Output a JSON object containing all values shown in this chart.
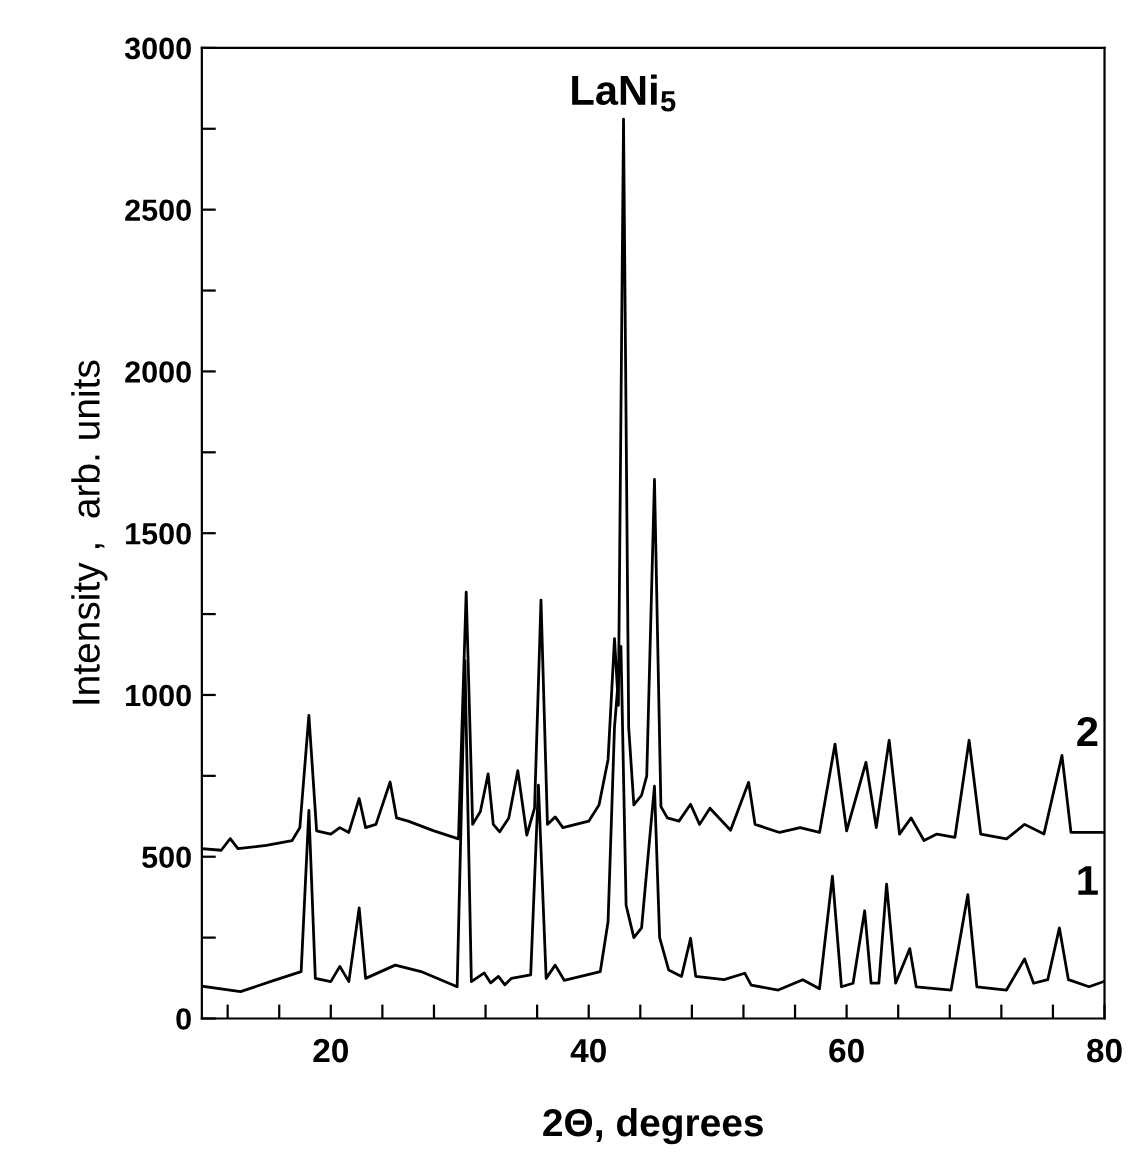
{
  "chart_data": {
    "type": "line",
    "xlabel": "2Θ, degrees",
    "ylabel": "Intensity ,  arb. units",
    "xlim": [
      10,
      80
    ],
    "ylim": [
      0,
      3000
    ],
    "xticks": [
      {
        "value": 12,
        "label": null
      },
      {
        "value": 16,
        "label": null
      },
      20,
      {
        "value": 24,
        "label": null
      },
      {
        "value": 28,
        "label": null
      },
      {
        "value": 32,
        "label": null
      },
      {
        "value": 36,
        "label": null
      },
      40,
      {
        "value": 44,
        "label": null
      },
      {
        "value": 48,
        "label": null
      },
      {
        "value": 52,
        "label": null
      },
      {
        "value": 56,
        "label": null
      },
      60,
      {
        "value": 64,
        "label": null
      },
      {
        "value": 68,
        "label": null
      },
      {
        "value": 72,
        "label": null
      },
      {
        "value": 76,
        "label": null
      },
      80
    ],
    "yticks": [
      0,
      {
        "value": 250,
        "label": null
      },
      500,
      {
        "value": 750,
        "label": null
      },
      1000,
      {
        "value": 1250,
        "label": null
      },
      1500,
      {
        "value": 1750,
        "label": null
      },
      2000,
      {
        "value": 2250,
        "label": null
      },
      2500,
      {
        "value": 2750,
        "label": null
      },
      3000
    ],
    "grid": false,
    "legend": false,
    "marker": "none",
    "line_style": "solid",
    "annotations": [
      {
        "text": "LaNi$_{5}$",
        "x": 42.7,
        "y": 2780
      }
    ],
    "series": [
      {
        "name": "2",
        "color": "#000000",
        "x": [
          10,
          11.5,
          12.2,
          12.8,
          15,
          17.0,
          17.6,
          18.3,
          18.9,
          20.0,
          20.7,
          21.4,
          22.2,
          22.7,
          23.5,
          24.6,
          25.1,
          26,
          28,
          29.9,
          30.5,
          31.0,
          31.6,
          32.2,
          32.6,
          33.1,
          33.8,
          34.5,
          35.2,
          35.8,
          36.3,
          36.8,
          37.4,
          38.0,
          39.0,
          40.0,
          40.8,
          41.5,
          42.0,
          42.3,
          42.7,
          43.1,
          43.5,
          44.1,
          44.5,
          45.1,
          45.6,
          46.1,
          47.0,
          47.9,
          48.6,
          49.4,
          51.0,
          52.4,
          52.9,
          54.8,
          56.4,
          57.9,
          59.1,
          60.0,
          61.5,
          62.3,
          63.3,
          64.1,
          65.0,
          66.0,
          67.0,
          68.4,
          69.5,
          70.4,
          72.4,
          73.8,
          75.3,
          76.7,
          77.4,
          80
        ],
        "values": [
          525,
          520,
          556,
          525,
          535,
          550,
          590,
          937,
          580,
          570,
          590,
          575,
          680,
          590,
          600,
          731,
          620,
          610,
          580,
          555,
          1318,
          600,
          640,
          756,
          600,
          577,
          620,
          766,
          567,
          650,
          1293,
          600,
          623,
          590,
          600,
          610,
          660,
          800,
          1174,
          968,
          2780,
          900,
          660,
          690,
          750,
          1666,
          655,
          620,
          610,
          662,
          600,
          650,
          582,
          730,
          600,
          575,
          590,
          575,
          848,
          580,
          792,
          590,
          860,
          570,
          620,
          550,
          570,
          560,
          860,
          570,
          555,
          600,
          570,
          813,
          575,
          575
        ]
      },
      {
        "name": "1",
        "color": "#000000",
        "x": [
          10,
          13.0,
          15.6,
          17.7,
          18.3,
          18.8,
          20.0,
          20.7,
          21.4,
          22.2,
          22.7,
          25.0,
          27.0,
          29.8,
          30.4,
          30.9,
          31.9,
          32.4,
          33.0,
          33.5,
          34.0,
          35.5,
          36.1,
          36.7,
          37.4,
          38.1,
          40.9,
          41.5,
          42.0,
          42.5,
          42.9,
          43.5,
          44.1,
          44.6,
          45.1,
          45.5,
          46.2,
          47.2,
          47.9,
          48.3,
          50.5,
          52.1,
          52.6,
          54.7,
          56.6,
          57.9,
          58.9,
          59.6,
          60.5,
          61.4,
          61.9,
          62.5,
          63.1,
          63.8,
          64.9,
          65.4,
          68.1,
          69.4,
          70.1,
          72.4,
          73.8,
          74.5,
          75.6,
          76.5,
          77.2,
          78.8,
          80
        ],
        "values": [
          100,
          83,
          118,
          145,
          643,
          124,
          114,
          161,
          114,
          342,
          124,
          165,
          145,
          98,
          1106,
          114,
          141,
          110,
          130,
          104,
          124,
          135,
          721,
          124,
          165,
          118,
          145,
          299,
          900,
          1150,
          350,
          250,
          280,
          500,
          718,
          250,
          150,
          130,
          248,
          130,
          120,
          140,
          103,
          88,
          120,
          92,
          440,
          98,
          109,
          333,
          109,
          109,
          415,
          109,
          216,
          98,
          88,
          383,
          98,
          88,
          184,
          109,
          120,
          280,
          120,
          98,
          115
        ]
      }
    ]
  }
}
